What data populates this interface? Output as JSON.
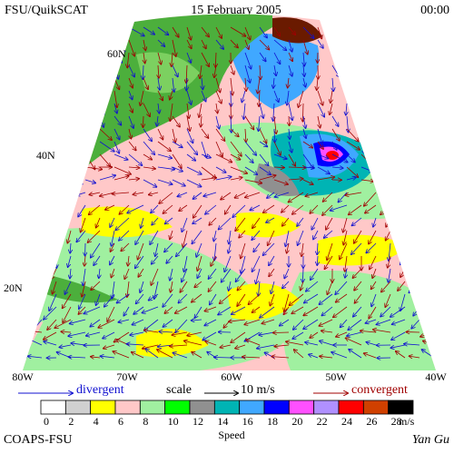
{
  "header": {
    "left": "FSU/QuikSCAT",
    "center": "15 February 2005",
    "right": "00:00"
  },
  "latitude_labels": [
    "60N",
    "40N",
    "20N"
  ],
  "longitude_labels": [
    "80W",
    "70W",
    "60W",
    "50W",
    "40W"
  ],
  "legend": {
    "divergent": "divergent",
    "scale": "scale",
    "scale_value": "10 m/s",
    "convergent": "convergent"
  },
  "colorbar": {
    "ticks": [
      0,
      2,
      4,
      6,
      8,
      10,
      12,
      14,
      16,
      18,
      20,
      22,
      24,
      26,
      28
    ],
    "colors": [
      "#ffffff",
      "#d0d0d0",
      "#ffff00",
      "#ffc8c8",
      "#a0f0a0",
      "#00ff00",
      "#909090",
      "#00b4b4",
      "#40a8ff",
      "#0000ff",
      "#ff50ff",
      "#b090ff",
      "#ff0000",
      "#d04000",
      "#000000"
    ],
    "unit": "m/s",
    "label": "Speed"
  },
  "footer": {
    "left": "COAPS-FSU",
    "right": "Yan Gu"
  }
}
